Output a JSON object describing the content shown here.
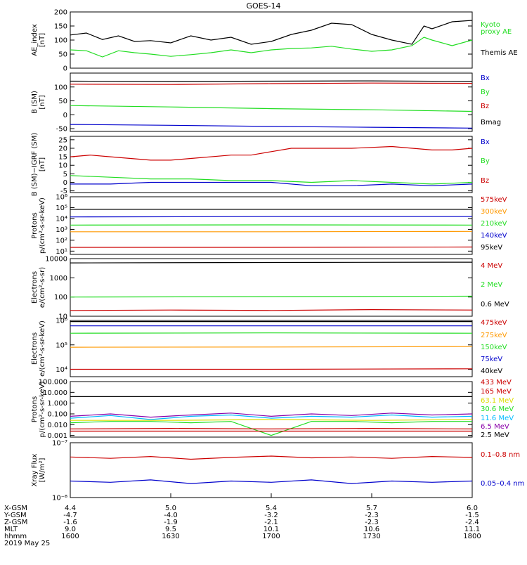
{
  "title": "GOES-14",
  "colors": {
    "black": "#000000",
    "green": "#22dd22",
    "red": "#cc0000",
    "blue": "#0000cc",
    "orange": "#ff9900",
    "yellow": "#dddd00",
    "cyan": "#00bbff",
    "purple": "#8800aa"
  },
  "chart_data": [
    {
      "type": "line",
      "ylabel": [
        "AE_index",
        "[nT]"
      ],
      "ylim": [
        0,
        200
      ],
      "yticks": [
        "0",
        "50",
        "100",
        "150",
        "200"
      ],
      "legend": [
        {
          "label": "Kyoto",
          "color": "green"
        },
        {
          "label": "proxy AE",
          "color": "green"
        },
        {
          "label": "Themis AE",
          "color": "black"
        }
      ],
      "series": [
        {
          "name": "Themis AE",
          "color": "black",
          "x": [
            0,
            4,
            8,
            12,
            16,
            20,
            25,
            30,
            35,
            40,
            45,
            50,
            55,
            60,
            65,
            70,
            75,
            80,
            85,
            88,
            90,
            95,
            100
          ],
          "values": [
            118,
            125,
            102,
            115,
            95,
            98,
            90,
            115,
            100,
            110,
            85,
            95,
            120,
            135,
            160,
            155,
            120,
            100,
            85,
            150,
            140,
            165,
            170
          ]
        },
        {
          "name": "Kyoto proxy AE",
          "color": "green",
          "x": [
            0,
            4,
            8,
            12,
            16,
            20,
            25,
            30,
            35,
            40,
            45,
            50,
            55,
            60,
            65,
            70,
            75,
            80,
            85,
            88,
            90,
            95,
            100
          ],
          "values": [
            65,
            62,
            40,
            62,
            55,
            50,
            42,
            48,
            55,
            65,
            55,
            65,
            70,
            72,
            78,
            68,
            60,
            65,
            80,
            110,
            100,
            80,
            100
          ]
        }
      ]
    },
    {
      "type": "line",
      "ylabel": [
        "B (SM)",
        "[nT]"
      ],
      "ylim": [
        -60,
        150
      ],
      "yticks": [
        "-50",
        "0",
        "50",
        "100"
      ],
      "legend": [
        {
          "label": "Bx",
          "color": "blue"
        },
        {
          "label": "By",
          "color": "green"
        },
        {
          "label": "Bz",
          "color": "red"
        },
        {
          "label": "Bmag",
          "color": "black"
        }
      ],
      "series": [
        {
          "name": "Bmag",
          "color": "black",
          "x": [
            0,
            25,
            50,
            75,
            100
          ],
          "values": [
            121,
            120,
            121,
            122,
            120
          ]
        },
        {
          "name": "Bz",
          "color": "red",
          "x": [
            0,
            25,
            50,
            75,
            100
          ],
          "values": [
            110,
            109,
            112,
            114,
            113
          ]
        },
        {
          "name": "By",
          "color": "green",
          "x": [
            0,
            25,
            50,
            75,
            100
          ],
          "values": [
            33,
            28,
            22,
            18,
            12
          ]
        },
        {
          "name": "Bx",
          "color": "blue",
          "x": [
            0,
            25,
            50,
            75,
            100
          ],
          "values": [
            -35,
            -38,
            -42,
            -45,
            -48
          ]
        }
      ]
    },
    {
      "type": "line",
      "ylabel": [
        "B (SM)−IGRF (SM)",
        "[nT]"
      ],
      "ylim": [
        -6,
        27
      ],
      "yticks": [
        "-5",
        "0",
        "5",
        "10",
        "15",
        "20",
        "25"
      ],
      "legend": [
        {
          "label": "Bx",
          "color": "blue"
        },
        {
          "label": "By",
          "color": "green"
        },
        {
          "label": "Bz",
          "color": "red"
        }
      ],
      "series": [
        {
          "name": "Bz",
          "color": "red",
          "x": [
            0,
            5,
            10,
            20,
            25,
            30,
            40,
            45,
            50,
            55,
            60,
            70,
            80,
            90,
            95,
            100
          ],
          "values": [
            15,
            16,
            15,
            13,
            13,
            14,
            16,
            16,
            18,
            20,
            20,
            20,
            21,
            19,
            19,
            20
          ]
        },
        {
          "name": "By",
          "color": "green",
          "x": [
            0,
            10,
            20,
            30,
            40,
            50,
            60,
            70,
            80,
            90,
            100
          ],
          "values": [
            4,
            3,
            2,
            2,
            1,
            1,
            0,
            1,
            0,
            -1,
            0
          ]
        },
        {
          "name": "Bx",
          "color": "blue",
          "x": [
            0,
            10,
            20,
            30,
            40,
            50,
            60,
            70,
            80,
            90,
            100
          ],
          "values": [
            -1,
            -1,
            0,
            0,
            0,
            0,
            -2,
            -2,
            -1,
            -2,
            -1
          ]
        }
      ]
    },
    {
      "type": "line",
      "log": true,
      "ylabel": [
        "Protons",
        "p/(cm²-s-sr-keV)"
      ],
      "ylim": [
        5,
        1000000
      ],
      "yticks": [
        "10¹",
        "10²",
        "10³",
        "10⁴",
        "10⁵",
        "10⁶"
      ],
      "legend": [
        {
          "label": "575keV",
          "color": "red"
        },
        {
          "label": "300keV",
          "color": "orange"
        },
        {
          "label": "210keV",
          "color": "green"
        },
        {
          "label": "140keV",
          "color": "blue"
        },
        {
          "label": "95keV",
          "color": "black"
        }
      ],
      "series": [
        {
          "name": "95keV",
          "color": "black",
          "x": [
            0,
            50,
            100
          ],
          "values": [
            70000,
            70000,
            70000
          ]
        },
        {
          "name": "140keV",
          "color": "blue",
          "x": [
            0,
            50,
            100
          ],
          "values": [
            14000,
            15000,
            15000
          ]
        },
        {
          "name": "210keV",
          "color": "green",
          "x": [
            0,
            50,
            100
          ],
          "values": [
            2500,
            2600,
            2500
          ]
        },
        {
          "name": "300keV",
          "color": "orange",
          "x": [
            0,
            50,
            100
          ],
          "values": [
            600,
            600,
            650
          ]
        },
        {
          "name": "575keV",
          "color": "red",
          "x": [
            0,
            50,
            100
          ],
          "values": [
            22,
            22,
            24
          ]
        }
      ]
    },
    {
      "type": "line",
      "log": true,
      "ylabel": [
        "Electrons",
        "e/(cm²-s-sr)"
      ],
      "ylim": [
        10,
        10000
      ],
      "yticks": [
        "10",
        "100",
        "1000",
        "10000"
      ],
      "legend": [
        {
          "label": "4 MeV",
          "color": "red"
        },
        {
          "label": "2 MeV",
          "color": "green"
        },
        {
          "label": "0.6 MeV",
          "color": "black"
        }
      ],
      "series": [
        {
          "name": "0.6 MeV",
          "color": "black",
          "x": [
            0,
            50,
            100
          ],
          "values": [
            6000,
            6300,
            6500
          ]
        },
        {
          "name": "2 MeV",
          "color": "green",
          "x": [
            0,
            50,
            100
          ],
          "values": [
            100,
            105,
            110
          ]
        },
        {
          "name": "4 MeV",
          "color": "red",
          "x": [
            0,
            25,
            50,
            75,
            100
          ],
          "values": [
            20,
            21,
            20,
            22,
            21
          ]
        }
      ]
    },
    {
      "type": "line",
      "log": true,
      "ylabel": [
        "Electrons",
        "e/(cm²-s-sr-keV)"
      ],
      "ylim": [
        5000,
        1000000
      ],
      "yticks": [
        "10⁴",
        "10⁵",
        "10⁶"
      ],
      "legend": [
        {
          "label": "475keV",
          "color": "red"
        },
        {
          "label": "275keV",
          "color": "orange"
        },
        {
          "label": "150keV",
          "color": "green"
        },
        {
          "label": "75keV",
          "color": "blue"
        },
        {
          "label": "40keV",
          "color": "black"
        }
      ],
      "series": [
        {
          "name": "40keV",
          "color": "black",
          "x": [
            0,
            50,
            100
          ],
          "values": [
            900000,
            900000,
            900000
          ]
        },
        {
          "name": "75keV",
          "color": "blue",
          "x": [
            0,
            50,
            100
          ],
          "values": [
            600000,
            600000,
            600000
          ]
        },
        {
          "name": "150keV",
          "color": "green",
          "x": [
            0,
            50,
            100
          ],
          "values": [
            300000,
            310000,
            300000
          ]
        },
        {
          "name": "275keV",
          "color": "orange",
          "x": [
            0,
            50,
            100
          ],
          "values": [
            80000,
            82000,
            85000
          ]
        },
        {
          "name": "475keV",
          "color": "red",
          "x": [
            0,
            50,
            100
          ],
          "values": [
            10000,
            10000,
            10500
          ]
        }
      ]
    },
    {
      "type": "line",
      "log": true,
      "ylabel": [
        "Protons",
        "p/(cm²-s-sr-keV)"
      ],
      "ylim": [
        0.0007,
        100
      ],
      "yticks": [
        "0.001",
        "0.010",
        "0.100",
        "1.000",
        "10.000",
        "100.000"
      ],
      "legend": [
        {
          "label": "433 MeV",
          "color": "red"
        },
        {
          "label": "165 MeV",
          "color": "red"
        },
        {
          "label": "63.1 MeV",
          "color": "yellow"
        },
        {
          "label": "30.6 MeV",
          "color": "green"
        },
        {
          "label": "11.6 MeV",
          "color": "cyan"
        },
        {
          "label": "6.5 MeV",
          "color": "purple"
        },
        {
          "label": "2.5 MeV",
          "color": "black"
        }
      ],
      "series": [
        {
          "name": "2.5 MeV",
          "color": "black",
          "x": [
            0,
            50,
            100
          ],
          "values": [
            4,
            4,
            4
          ]
        },
        {
          "name": "6.5 MeV",
          "color": "purple",
          "x": [
            0,
            10,
            20,
            30,
            40,
            50,
            60,
            70,
            80,
            90,
            100
          ],
          "values": [
            0.06,
            0.1,
            0.05,
            0.08,
            0.12,
            0.06,
            0.1,
            0.07,
            0.12,
            0.08,
            0.1
          ]
        },
        {
          "name": "11.6 MeV",
          "color": "cyan",
          "x": [
            0,
            10,
            20,
            30,
            40,
            50,
            60,
            70,
            80,
            90,
            100
          ],
          "values": [
            0.04,
            0.07,
            0.03,
            0.06,
            0.08,
            0.04,
            0.06,
            0.05,
            0.08,
            0.05,
            0.06
          ]
        },
        {
          "name": "30.6 MeV",
          "color": "green",
          "x": [
            0,
            10,
            20,
            30,
            40,
            50,
            60,
            70,
            80,
            90,
            100
          ],
          "values": [
            0.015,
            0.02,
            0.02,
            0.015,
            0.02,
            0.001,
            0.02,
            0.02,
            0.015,
            0.02,
            0.02
          ]
        },
        {
          "name": "63.1 MeV",
          "color": "yellow",
          "x": [
            0,
            25,
            50,
            75,
            100
          ],
          "values": [
            0.025,
            0.025,
            0.03,
            0.025,
            0.03
          ]
        },
        {
          "name": "165 MeV",
          "color": "red",
          "x": [
            0,
            25,
            50,
            75,
            100
          ],
          "values": [
            0.004,
            0.0045,
            0.004,
            0.0045,
            0.004
          ]
        },
        {
          "name": "433 MeV",
          "color": "red",
          "x": [
            0,
            25,
            50,
            75,
            100
          ],
          "values": [
            0.0025,
            0.0025,
            0.0025,
            0.0025,
            0.0025
          ]
        }
      ]
    },
    {
      "type": "line",
      "log": true,
      "ylabel": [
        "Xray Flux",
        "[W/m²]"
      ],
      "ylim": [
        1e-08,
        1e-07
      ],
      "yticks": [
        "10⁻⁸",
        "10⁻⁷"
      ],
      "legend": [
        {
          "label": "0.1–0.8 nm",
          "color": "red"
        },
        {
          "label": "0.05–0.4 nm",
          "color": "blue"
        }
      ],
      "series": [
        {
          "name": "0.1-0.8 nm",
          "color": "red",
          "x": [
            0,
            10,
            20,
            30,
            40,
            50,
            60,
            70,
            80,
            90,
            100
          ],
          "values": [
            5.5e-08,
            5.2e-08,
            5.6e-08,
            5e-08,
            5.4e-08,
            5.7e-08,
            5.3e-08,
            5.5e-08,
            5.2e-08,
            5.6e-08,
            5.4e-08
          ]
        },
        {
          "name": "0.05-0.4 nm",
          "color": "blue",
          "x": [
            0,
            10,
            20,
            30,
            40,
            50,
            60,
            70,
            80,
            90,
            100
          ],
          "values": [
            2e-08,
            1.9e-08,
            2.1e-08,
            1.8e-08,
            2e-08,
            1.9e-08,
            2.1e-08,
            1.8e-08,
            2e-08,
            1.9e-08,
            2e-08
          ]
        }
      ]
    }
  ],
  "xaxis": {
    "rows": [
      "X-GSM",
      "Y-GSM",
      "Z-GSM",
      "MLT",
      "hhmm",
      "2019 May 25"
    ],
    "columns": [
      [
        "4.4",
        "-4.7",
        "-1.6",
        "9.0",
        "1600"
      ],
      [
        "5.0",
        "-4.0",
        "-1.9",
        "9.5",
        "1630"
      ],
      [
        "5.4",
        "-3.2",
        "-2.1",
        "10.1",
        "1700"
      ],
      [
        "5.7",
        "-2.3",
        "-2.3",
        "10.6",
        "1730"
      ],
      [
        "6.0",
        "-1.5",
        "-2.4",
        "11.1",
        "1800"
      ]
    ]
  }
}
